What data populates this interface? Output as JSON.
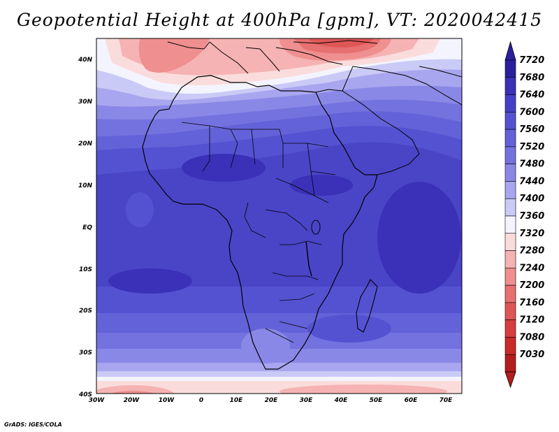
{
  "title": "Geopotential Height at 400hPa [gpm], VT: 2020042415",
  "credit": "GrADS: IGES/COLA",
  "map": {
    "lon_ticks": [
      "30W",
      "20W",
      "10W",
      "0",
      "10E",
      "20E",
      "30E",
      "40E",
      "50E",
      "60E",
      "70E"
    ],
    "lat_ticks": [
      "40N",
      "30N",
      "20N",
      "10N",
      "EQ",
      "10S",
      "20S",
      "30S",
      "40S"
    ]
  },
  "colorbar": {
    "levels": [
      "7720",
      "7680",
      "7640",
      "7600",
      "7560",
      "7520",
      "7480",
      "7440",
      "7400",
      "7360",
      "7320",
      "7280",
      "7240",
      "7200",
      "7160",
      "7120",
      "7080",
      "7030"
    ],
    "colors": [
      "#2a1f9e",
      "#3a31b8",
      "#4540c8",
      "#5552d2",
      "#6462d8",
      "#7472df",
      "#8a88e6",
      "#a8a6ef",
      "#cacaf6",
      "#f4f4ff",
      "#fbdcdc",
      "#f5b3b3",
      "#ef8f8f",
      "#e77070",
      "#df5656",
      "#d63e3e",
      "#c92a2a",
      "#b31d1d"
    ]
  }
}
